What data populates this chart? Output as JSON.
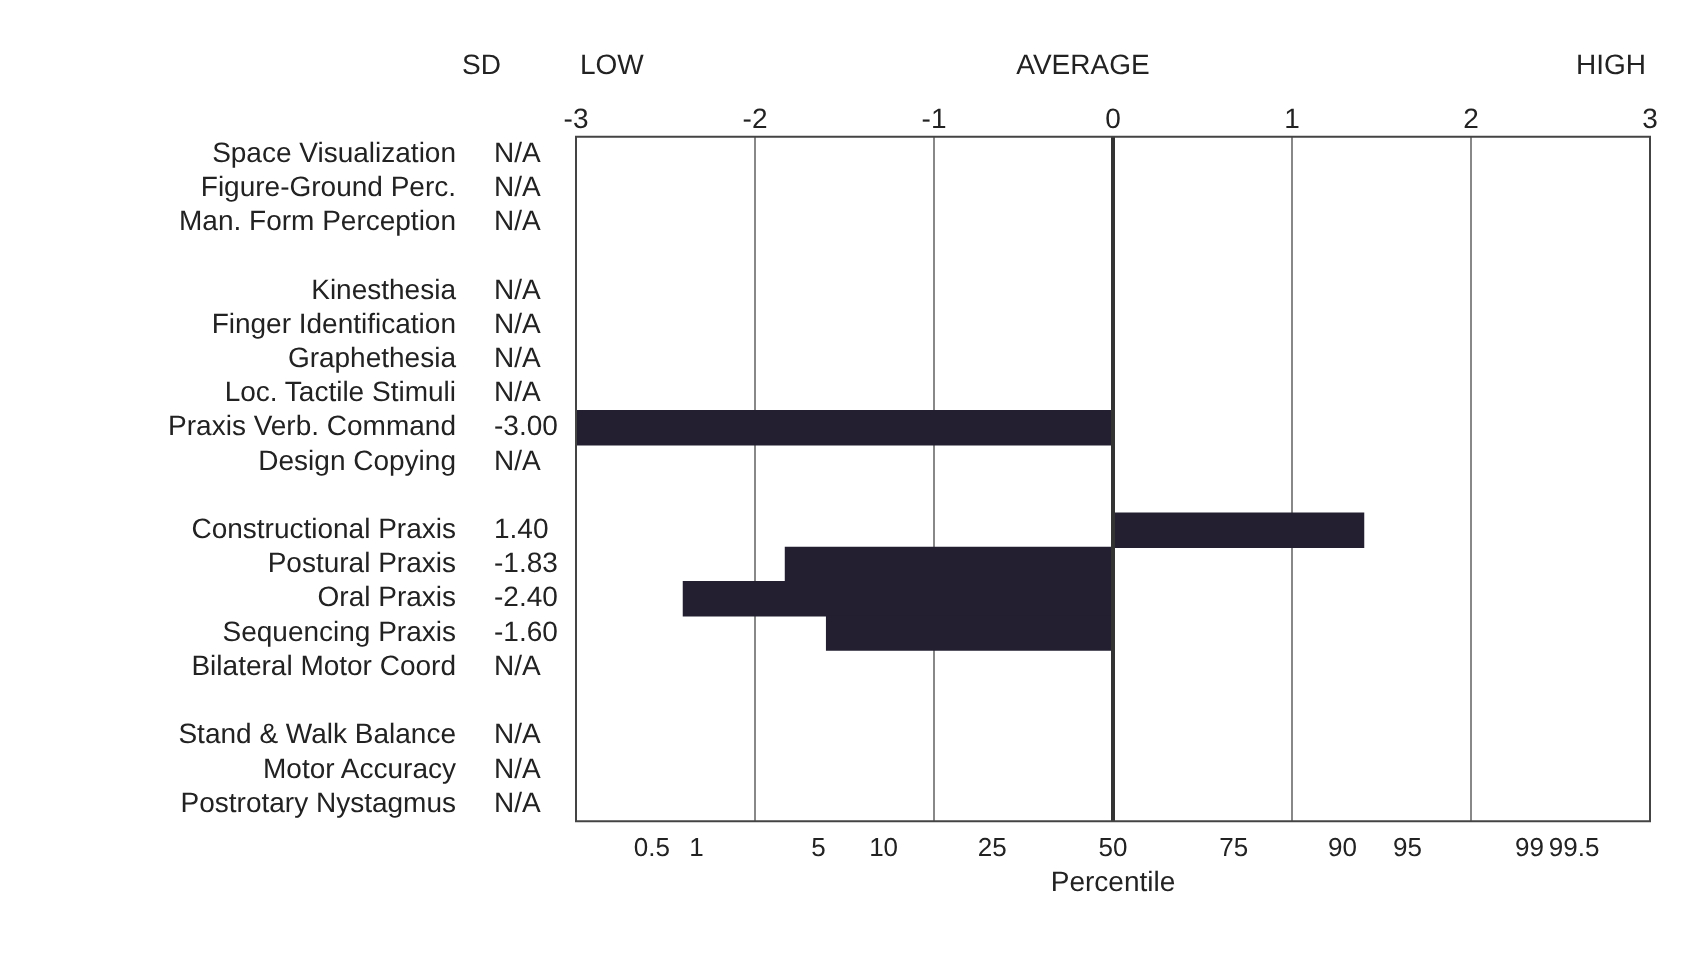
{
  "chart_data": {
    "type": "bar",
    "orientation": "horizontal",
    "categories": [
      "Space Visualization",
      "Figure-Ground Perc.",
      "Man. Form Perception",
      null,
      "Kinesthesia",
      "Finger Identification",
      "Graphethesia",
      "Loc. Tactile Stimuli",
      "Praxis Verb. Command",
      "Design Copying",
      null,
      "Constructional Praxis",
      "Postural Praxis",
      "Oral Praxis",
      "Sequencing Praxis",
      "Bilateral Motor Coord",
      null,
      "Stand & Walk Balance",
      "Motor Accuracy",
      "Postrotary Nystagmus"
    ],
    "values": [
      null,
      null,
      null,
      null,
      null,
      null,
      null,
      null,
      -3.0,
      null,
      null,
      1.4,
      -1.83,
      -2.4,
      -1.6,
      null,
      null,
      null,
      null,
      null
    ],
    "value_labels": [
      "N/A",
      "N/A",
      "N/A",
      null,
      "N/A",
      "N/A",
      "N/A",
      "N/A",
      "-3.00",
      "N/A",
      null,
      "1.40",
      "-1.83",
      "-2.40",
      "-1.60",
      "N/A",
      null,
      "N/A",
      "N/A",
      "N/A"
    ],
    "color": "#231f30",
    "xlim": [
      -3,
      3
    ],
    "xticks": [
      -3,
      -2,
      -1,
      0,
      1,
      2,
      3
    ],
    "x2label": "Percentile",
    "annotations": [
      "SD",
      "LOW",
      "AVERAGE",
      "HIGH",
      "0.5",
      "1",
      "5",
      "10",
      "25",
      "50",
      "75",
      "90",
      "95",
      "99",
      "99.5"
    ],
    "ref_lines": [
      {
        "axis": "x",
        "value": 0,
        "color": "#333333"
      }
    ],
    "grid": "x",
    "legend": false
  }
}
